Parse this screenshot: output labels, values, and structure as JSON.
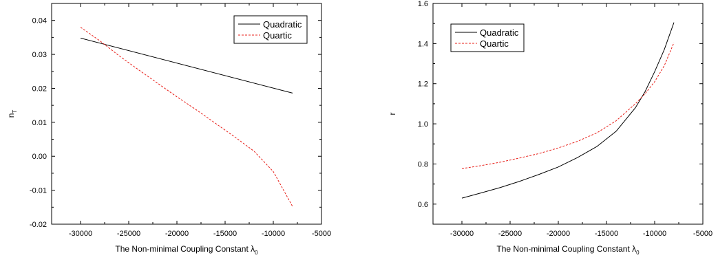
{
  "chart_data": [
    {
      "type": "line",
      "xlabel": "The Non-minimal Coupling Constant λ",
      "xlabel_sub": "0",
      "ylabel": "n",
      "ylabel_sub": "T",
      "xlim": [
        -33000,
        -5000
      ],
      "ylim": [
        -0.02,
        0.045
      ],
      "xticks": [
        -30000,
        -25000,
        -20000,
        -15000,
        -10000,
        -5000
      ],
      "xtick_labels": [
        "-30000",
        "-25000",
        "-20000",
        "-15000",
        "-10000",
        "-5000"
      ],
      "yticks": [
        -0.02,
        -0.01,
        0.0,
        0.01,
        0.02,
        0.03,
        0.04
      ],
      "ytick_labels": [
        "-0.02",
        "-0.01",
        "0.00",
        "0.01",
        "0.02",
        "0.03",
        "0.04"
      ],
      "grid": false,
      "legend_position": "top-right",
      "series": [
        {
          "name": "Quadratic",
          "color": "#000000",
          "dash": "solid",
          "x": [
            -30000,
            -8000
          ],
          "y": [
            0.0348,
            0.0186
          ]
        },
        {
          "name": "Quartic",
          "color": "#e8201a",
          "dash": "dashed",
          "x": [
            -30000,
            -28000,
            -26000,
            -24000,
            -22000,
            -20000,
            -18000,
            -16000,
            -14000,
            -12000,
            -10000,
            -8000
          ],
          "y": [
            0.038,
            0.034,
            0.0296,
            0.0255,
            0.0215,
            0.0175,
            0.0137,
            0.0097,
            0.0057,
            0.0015,
            -0.0045,
            -0.0148
          ]
        }
      ]
    },
    {
      "type": "line",
      "xlabel": "The Non-minimal Coupling Constant λ",
      "xlabel_sub": "0",
      "ylabel": "r",
      "ylabel_sub": "",
      "xlim": [
        -33000,
        -5000
      ],
      "ylim": [
        0.5,
        1.6
      ],
      "xticks": [
        -30000,
        -25000,
        -20000,
        -15000,
        -10000,
        -5000
      ],
      "xtick_labels": [
        "-30000",
        "-25000",
        "-20000",
        "-15000",
        "-10000",
        "-5000"
      ],
      "yticks": [
        0.6,
        0.8,
        1.0,
        1.2,
        1.4,
        1.6
      ],
      "ytick_labels": [
        "0.6",
        "0.8",
        "1.0",
        "1.2",
        "1.4",
        "1.6"
      ],
      "grid": false,
      "legend_position": "top-left",
      "series": [
        {
          "name": "Quadratic",
          "color": "#000000",
          "dash": "solid",
          "x": [
            -30000,
            -28000,
            -26000,
            -24000,
            -22000,
            -20000,
            -18000,
            -16000,
            -14000,
            -12000,
            -11000,
            -10000,
            -9000,
            -8000
          ],
          "y": [
            0.63,
            0.656,
            0.683,
            0.714,
            0.748,
            0.785,
            0.832,
            0.887,
            0.963,
            1.08,
            1.16,
            1.26,
            1.37,
            1.505
          ]
        },
        {
          "name": "Quartic",
          "color": "#e8201a",
          "dash": "dashed",
          "x": [
            -30000,
            -28000,
            -26000,
            -24000,
            -22000,
            -20000,
            -18000,
            -16000,
            -14000,
            -12000,
            -11000,
            -10000,
            -9000,
            -8000
          ],
          "y": [
            0.777,
            0.792,
            0.809,
            0.83,
            0.852,
            0.88,
            0.913,
            0.955,
            1.015,
            1.1,
            1.15,
            1.21,
            1.29,
            1.405
          ]
        }
      ]
    }
  ]
}
